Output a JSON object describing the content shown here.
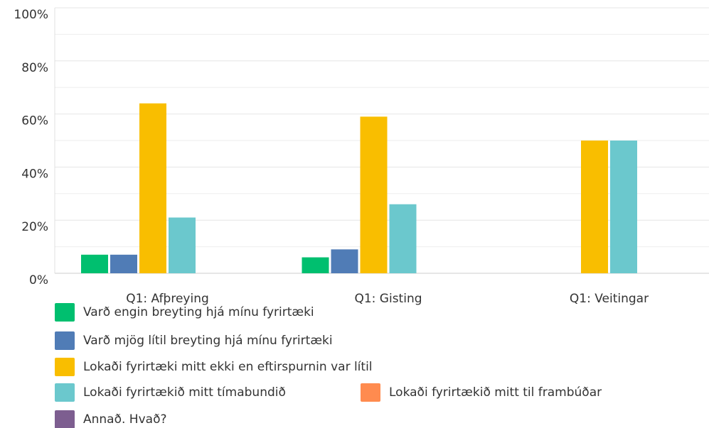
{
  "chart_data": {
    "type": "bar",
    "categories": [
      "Q1: Afþreying",
      "Q1: Gisting",
      "Q1: Veitingar"
    ],
    "series": [
      {
        "name": "Varð engin breyting hjá mínu fyrirtæki",
        "color": "#00bf6f",
        "values": [
          7,
          6,
          0
        ]
      },
      {
        "name": "Varð mjög lítil breyting hjá mínu fyrirtæki",
        "color": "#507cb6",
        "values": [
          7,
          9,
          0
        ]
      },
      {
        "name": "Lokaði fyrirtæki mitt ekki en eftirspurnin var lítil",
        "color": "#f9be00",
        "values": [
          64,
          59,
          50
        ]
      },
      {
        "name": "Lokaði fyrirtækið mitt tímabundið",
        "color": "#6bc8cd",
        "values": [
          21,
          26,
          50
        ]
      },
      {
        "name": "Lokaði fyrirtækið mitt til frambúðar",
        "color": "#ff8b4f",
        "values": [
          0,
          0,
          0
        ]
      },
      {
        "name": "Annað. Hvað?",
        "color": "#7d5e90",
        "values": [
          0,
          0,
          0
        ]
      }
    ],
    "ylim": [
      0,
      100
    ],
    "yticks": [
      {
        "value": 0,
        "label": "0%"
      },
      {
        "value": 20,
        "label": "20%"
      },
      {
        "value": 40,
        "label": "40%"
      },
      {
        "value": 60,
        "label": "60%"
      },
      {
        "value": 80,
        "label": "80%"
      },
      {
        "value": 100,
        "label": "100%"
      }
    ],
    "minor_yticks": [
      10,
      30,
      50,
      70,
      90
    ],
    "grid": true
  }
}
